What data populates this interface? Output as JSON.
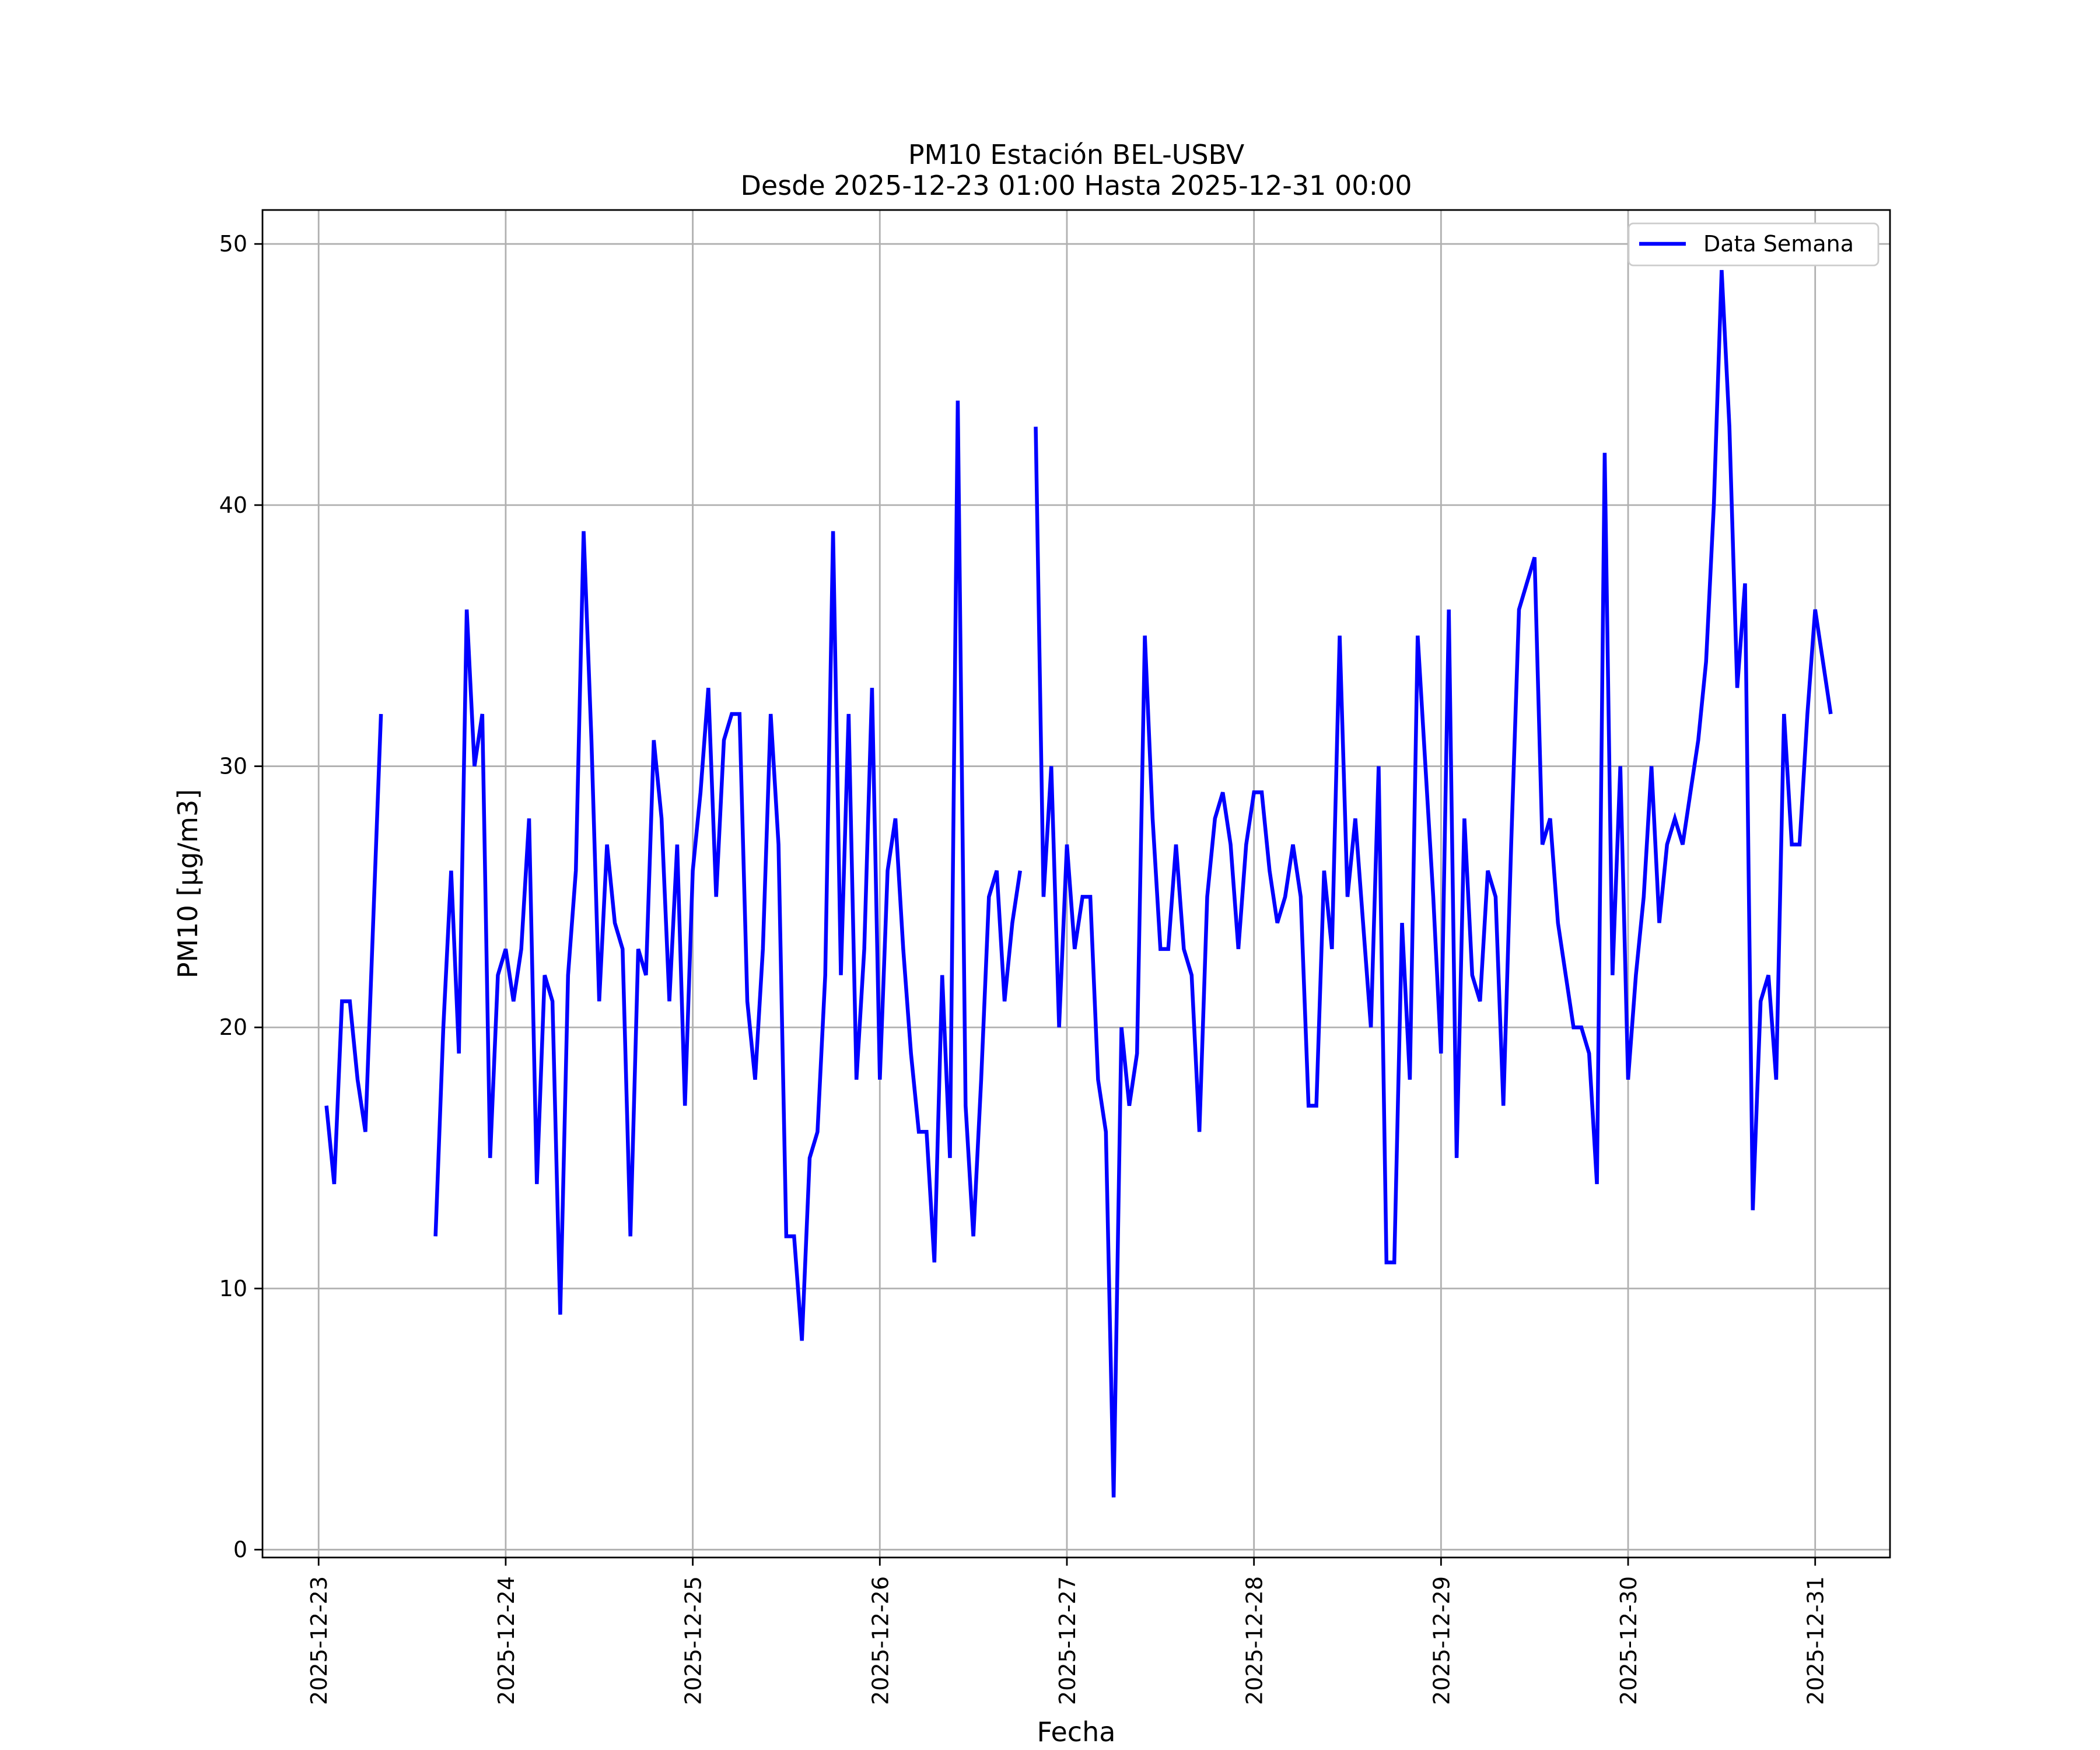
{
  "chart_data": {
    "type": "line",
    "title": "PM10 Estación BEL-USBV",
    "subtitle": "Desde 2025-12-23 01:00 Hasta 2025-12-31 00:00",
    "xlabel": "Fecha",
    "ylabel": "PM10 [μg/m3]",
    "ylim": [
      -0.3,
      51.3
    ],
    "xlim_days": [
      -0.3,
      8.4
    ],
    "grid": true,
    "legend_position": "top-right",
    "x_tick_labels": [
      "2025-12-23",
      "2025-12-24",
      "2025-12-25",
      "2025-12-26",
      "2025-12-27",
      "2025-12-28",
      "2025-12-29",
      "2025-12-30",
      "2025-12-31"
    ],
    "y_ticks": [
      0,
      10,
      20,
      30,
      40,
      50
    ],
    "y_tick_labels": [
      "0",
      "10",
      "20",
      "30",
      "40",
      "50"
    ],
    "series": [
      {
        "name": "Data Semana",
        "color": "#0000ff",
        "x_unit": "hours since 2025-12-23 00:00",
        "x_start": 1,
        "x_step": 1,
        "values": [
          17,
          14,
          21,
          21,
          18,
          16,
          24,
          32,
          null,
          null,
          null,
          null,
          null,
          null,
          12,
          20,
          26,
          19,
          36,
          30,
          32,
          15,
          22,
          23,
          21,
          23,
          28,
          14,
          22,
          21,
          9,
          22,
          26,
          39,
          31,
          21,
          27,
          24,
          23,
          12,
          23,
          22,
          31,
          28,
          21,
          27,
          17,
          26,
          29,
          33,
          25,
          31,
          32,
          32,
          21,
          18,
          23,
          32,
          27,
          12,
          12,
          8,
          15,
          16,
          22,
          39,
          22,
          32,
          18,
          23,
          33,
          18,
          26,
          28,
          23,
          19,
          16,
          16,
          11,
          22,
          15,
          44,
          17,
          12,
          18,
          25,
          26,
          21,
          24,
          26,
          null,
          43,
          25,
          30,
          20,
          27,
          23,
          25,
          25,
          18,
          16,
          2,
          20,
          17,
          19,
          35,
          28,
          23,
          23,
          27,
          23,
          22,
          16,
          25,
          28,
          29,
          27,
          23,
          27,
          29,
          29,
          26,
          24,
          25,
          27,
          25,
          17,
          17,
          26,
          23,
          35,
          25,
          28,
          24,
          20,
          30,
          11,
          11,
          24,
          18,
          35,
          30,
          25,
          19,
          36,
          15,
          28,
          22,
          21,
          26,
          25,
          17,
          27,
          36,
          37,
          38,
          27,
          28,
          24,
          22,
          20,
          20,
          19,
          14,
          42,
          22,
          30,
          18,
          22,
          25,
          30,
          24,
          27,
          28,
          27,
          29,
          31,
          34,
          40,
          49,
          43,
          33,
          37,
          13,
          21,
          22,
          18,
          32,
          27,
          27,
          32,
          36,
          34,
          32
        ]
      }
    ]
  }
}
